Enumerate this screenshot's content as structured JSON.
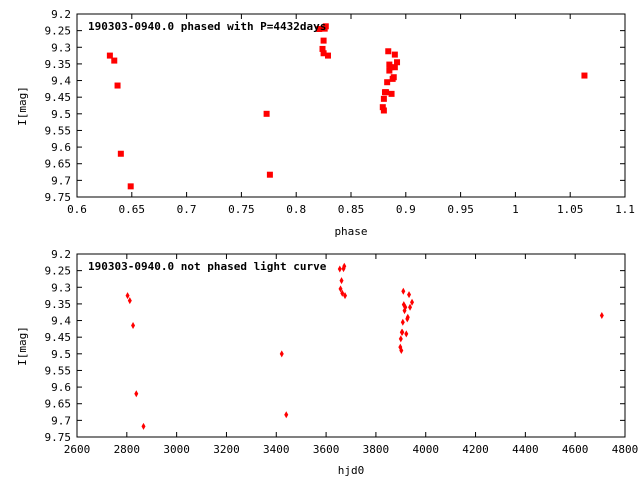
{
  "chart_data": [
    {
      "type": "scatter",
      "title": "190303-0940.0 phased with P=4432days",
      "xlabel": "phase",
      "ylabel": "I[mag]",
      "xlim": [
        0.6,
        1.1
      ],
      "ylim": [
        9.75,
        9.2
      ],
      "y_inverted": true,
      "xticks": [
        "0.6",
        "0.65",
        "0.7",
        "0.75",
        "0.8",
        "0.85",
        "0.9",
        "0.95",
        "1",
        "1.05",
        "1.1"
      ],
      "yticks": [
        "9.2",
        "9.25",
        "9.3",
        "9.35",
        "9.4",
        "9.45",
        "9.5",
        "9.55",
        "9.6",
        "9.65",
        "9.7",
        "9.75"
      ],
      "marker": "square",
      "color": "#ff0000",
      "x": [
        0.63,
        0.634,
        0.637,
        0.64,
        0.649,
        0.773,
        0.776,
        0.821,
        0.824,
        0.825,
        0.825,
        0.826,
        0.827,
        0.829,
        0.879,
        0.88,
        0.88,
        0.881,
        0.882,
        0.883,
        0.884,
        0.885,
        0.885,
        0.886,
        0.887,
        0.888,
        0.889,
        0.89,
        0.89,
        0.892,
        1.063
      ],
      "y": [
        9.325,
        9.34,
        9.415,
        9.62,
        9.718,
        9.5,
        9.683,
        9.245,
        9.305,
        9.28,
        9.318,
        9.244,
        9.237,
        9.325,
        9.48,
        9.455,
        9.49,
        9.435,
        9.435,
        9.405,
        9.312,
        9.352,
        9.37,
        9.36,
        9.44,
        9.395,
        9.39,
        9.322,
        9.36,
        9.345,
        9.385
      ]
    },
    {
      "type": "scatter",
      "title": "190303-0940.0 not phased light curve",
      "xlabel": "hjd0",
      "ylabel": "I[mag]",
      "xlim": [
        2600,
        4800
      ],
      "ylim": [
        9.75,
        9.2
      ],
      "y_inverted": true,
      "xticks": [
        "2600",
        "2800",
        "3000",
        "3200",
        "3400",
        "3600",
        "3800",
        "4000",
        "4200",
        "4400",
        "4600",
        "4800"
      ],
      "yticks": [
        "9.2",
        "9.25",
        "9.3",
        "9.35",
        "9.4",
        "9.45",
        "9.5",
        "9.55",
        "9.6",
        "9.65",
        "9.7",
        "9.75"
      ],
      "marker": "diamond",
      "color": "#ff0000",
      "x": [
        2803,
        2812,
        2825,
        2838,
        2867,
        3422,
        3440,
        3655,
        3658,
        3662,
        3665,
        3670,
        3673,
        3676,
        3898,
        3900,
        3902,
        3904,
        3906,
        3908,
        3910,
        3912,
        3915,
        3918,
        3922,
        3926,
        3928,
        3933,
        3937,
        3945,
        4707
      ],
      "y": [
        9.325,
        9.34,
        9.415,
        9.62,
        9.718,
        9.5,
        9.683,
        9.245,
        9.305,
        9.28,
        9.318,
        9.244,
        9.237,
        9.325,
        9.48,
        9.455,
        9.49,
        9.435,
        9.435,
        9.405,
        9.312,
        9.352,
        9.37,
        9.36,
        9.44,
        9.395,
        9.39,
        9.322,
        9.36,
        9.345,
        9.385
      ]
    }
  ]
}
